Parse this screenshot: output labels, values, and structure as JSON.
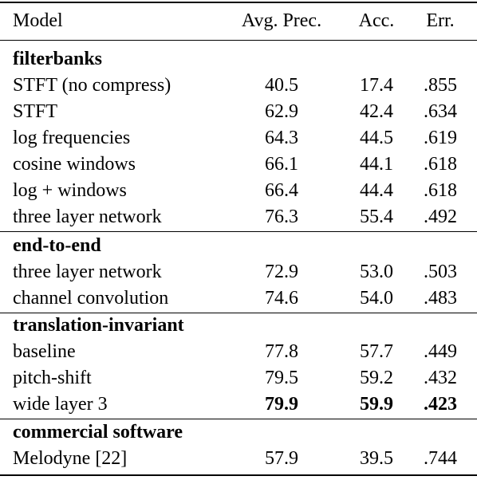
{
  "header": {
    "model": "Model",
    "avg_prec": "Avg. Prec.",
    "acc": "Acc.",
    "err": "Err."
  },
  "sections": [
    {
      "title": "filterbanks",
      "rows": [
        {
          "model": "STFT (no compress)",
          "avg": "40.5",
          "acc": "17.4",
          "err": ".855"
        },
        {
          "model": "STFT",
          "avg": "62.9",
          "acc": "42.4",
          "err": ".634"
        },
        {
          "model": "log frequencies",
          "avg": "64.3",
          "acc": "44.5",
          "err": ".619"
        },
        {
          "model": "cosine windows",
          "avg": "66.1",
          "acc": "44.1",
          "err": ".618"
        },
        {
          "model": "log + windows",
          "avg": "66.4",
          "acc": "44.4",
          "err": ".618"
        },
        {
          "model": "three layer network",
          "avg": "76.3",
          "acc": "55.4",
          "err": ".492"
        }
      ]
    },
    {
      "title": "end-to-end",
      "rows": [
        {
          "model": "three layer network",
          "avg": "72.9",
          "acc": "53.0",
          "err": ".503"
        },
        {
          "model": "channel convolution",
          "avg": "74.6",
          "acc": "54.0",
          "err": ".483"
        }
      ]
    },
    {
      "title": "translation-invariant",
      "rows": [
        {
          "model": "baseline",
          "avg": "77.8",
          "acc": "57.7",
          "err": ".449"
        },
        {
          "model": "pitch-shift",
          "avg": "79.5",
          "acc": "59.2",
          "err": ".432"
        },
        {
          "model": "wide layer 3",
          "avg": "79.9",
          "acc": "59.9",
          "err": ".423"
        }
      ]
    },
    {
      "title": "commercial software",
      "rows": [
        {
          "model": "Melodyne [22]",
          "avg": "57.9",
          "acc": "39.5",
          "err": ".744"
        }
      ]
    }
  ]
}
